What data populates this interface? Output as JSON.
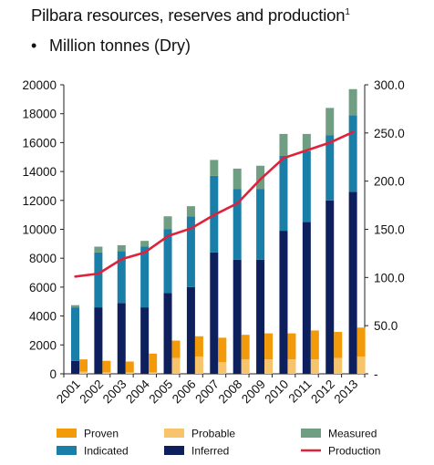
{
  "header": {
    "title": "Pilbara resources, reserves and production",
    "title_footnote": "1",
    "bullet": "•",
    "subtitle": "Million tonnes (Dry)"
  },
  "chart_data": {
    "type": "bar",
    "stacked": true,
    "categories": [
      "2001",
      "2002",
      "2003",
      "2004",
      "2005",
      "2006",
      "2007",
      "2008",
      "2009",
      "2010",
      "2011",
      "2012",
      "2013"
    ],
    "left_axis": {
      "min": 0,
      "max": 20000,
      "ticks": [
        "0",
        "2000",
        "4000",
        "6000",
        "8000",
        "10000",
        "12000",
        "14000",
        "16000",
        "18000",
        "20000"
      ]
    },
    "right_axis": {
      "min": 0,
      "max": 300,
      "ticks": [
        "-",
        "50.0",
        "100.0",
        "150.0",
        "200.0",
        "250.0",
        "300.0"
      ]
    },
    "resources_series": [
      {
        "name": "Inferred",
        "color": "#0d1f5c",
        "values": [
          900,
          4600,
          4900,
          4600,
          5600,
          6000,
          8400,
          7900,
          7900,
          9900,
          10500,
          12000,
          12600
        ]
      },
      {
        "name": "Indicated",
        "color": "#1a7fa8",
        "values": [
          3700,
          3800,
          3600,
          4200,
          4400,
          4900,
          5300,
          4900,
          4900,
          5200,
          4900,
          4500,
          5300
        ]
      },
      {
        "name": "Measured",
        "color": "#6f9e82",
        "values": [
          150,
          400,
          400,
          400,
          900,
          700,
          1100,
          1400,
          1600,
          1500,
          1200,
          1900,
          1800
        ]
      }
    ],
    "reserves_series": [
      {
        "name": "Probable",
        "color": "#f7c46c",
        "values": [
          150,
          100,
          100,
          100,
          1100,
          1200,
          800,
          1000,
          1000,
          1000,
          1000,
          1100,
          1200
        ]
      },
      {
        "name": "Proven",
        "color": "#f29a0a",
        "values": [
          850,
          800,
          750,
          1300,
          1200,
          1400,
          1700,
          1700,
          1800,
          1800,
          2000,
          1800,
          2000
        ]
      }
    ],
    "production": {
      "name": "Production",
      "color": "#e0213a",
      "axis": "right",
      "values": [
        101,
        104,
        119,
        126,
        143,
        151,
        165,
        177,
        202,
        224,
        232,
        240,
        251
      ]
    },
    "legend": [
      {
        "name": "Proven",
        "color": "#f29a0a",
        "kind": "box"
      },
      {
        "name": "Probable",
        "color": "#f7c46c",
        "kind": "box"
      },
      {
        "name": "Measured",
        "color": "#6f9e82",
        "kind": "box"
      },
      {
        "name": "Indicated",
        "color": "#1a7fa8",
        "kind": "box"
      },
      {
        "name": "Inferred",
        "color": "#0d1f5c",
        "kind": "box"
      },
      {
        "name": "Production",
        "color": "#e0213a",
        "kind": "line"
      }
    ],
    "legend_position": "bottom"
  }
}
